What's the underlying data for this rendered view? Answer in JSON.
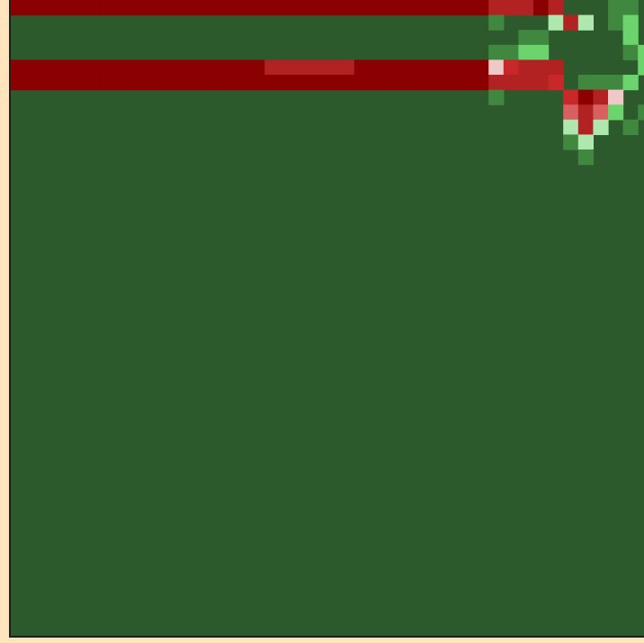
{
  "chart_data": {
    "type": "heatmap",
    "title": "",
    "xlabel": "",
    "ylabel": "",
    "grid": false,
    "legend": "none",
    "colors": {
      "background": "#2c5a2c",
      "0": "#8b0000",
      "1": "#b22222",
      "2": "#c8282a",
      "3": "#d86060",
      "4": "#f0c8c8",
      "5": "#aee8ae",
      "6": "#6cd46c",
      "7": "#40883f",
      "8": "#2c5a2c"
    },
    "rows": [
      "0000000000000000000000000000000011101888778418888888888888888888888888888888888888888888888888888888888888888888888888888888888888888888888888888888888888888888888888888888888888888888888888888888",
      "8888888888888888888888888888888878885158768838888888888888888888888888888888888888888888888888888888888888888888888888888888888888888888888888888888888888888888888888888888888888888888888888888888",
      "8888888888888888888888888888888888778888868878888888888888888888888888888888888888888888888888888888888888888888888888888888888888888888888888888888888888888888888888888888888888888888888888888888",
      "8888888888888888888888888888888877668888876888888888888888888888888888888888888888888888888888888888888888888888888888888888888888888888888888888888888888888888888888888888888888888888888888888888",
      "0000000000000000011111100000000042111888886888888888888888888888888888888888888888888888888888888888888888888888888888888888888888888888888888888888888888888888888888888888888888888888888888888888",
      "0000000000000000000000000000000011112877768888888888888888888888888888888888888888888888888888888888888888888888888888888888888888888888888888888888888888888888888888888888888888888888888888888888",
      "8888888888888888888888888888888878888201488118888888888888888888888888888888888888888888888888888888888888888888888888888888888888888888888888888888888888888888888888888888888888888888888888888888",
      "8888888888888888888888888888888888888313687188888888888888888888888888888888888888888888888888888888888888888888888888888888888888888888888888888888888888888888888888888888888888888888888888888888",
      "8888888888888888888888888888888888888515878288888888888888888888888888888888888888888888888888888888888888888888888888888888888888888888888888888888888888888888888888888888888888888888888888888888",
      "8888888888888888888888888888888888888758888858888888888888888888888888888888888888888888888888888888888888888888888888888888888888888888888888888888888888888888888888888888888888888888888888888888",
      "8888888888888888888888888888888888888878888888888888888888888888888888888888888888888888888888888888888888888888888888888888888888888888888888888888888888888888888888888888888888888888888888888888"
    ]
  }
}
